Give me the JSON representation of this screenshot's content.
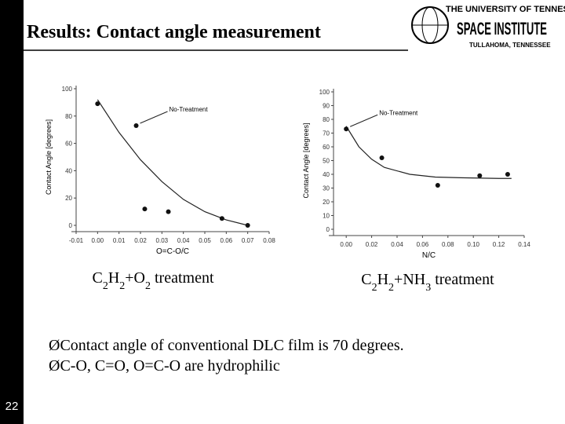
{
  "slide": {
    "title": "Results: Contact angle measurement",
    "logo": [
      "THE UNIVERSITY OF TENNESSEE",
      "SPACE INSTITUTE",
      "TULLAHOMA, TENNESSEE"
    ],
    "captions": [
      "C2H2+O2 treatment",
      "C2H2+NH3 treatment"
    ],
    "bullet": "Ø",
    "bullets": [
      "Contact angle of conventional DLC film is 70 degrees.",
      "C-O, C=O, O=C-O are hydrophilic"
    ],
    "page_number": "22"
  },
  "chart_data": [
    {
      "type": "scatter",
      "xlabel": "O=C-O/C",
      "ylabel": "Contact Angle [degrees]",
      "annotation": "No-Treatment",
      "x": [
        0.0,
        0.018,
        0.022,
        0.033,
        0.058,
        0.07
      ],
      "values": [
        89,
        73,
        12,
        10,
        5,
        0
      ],
      "color": "#111111",
      "curve": {
        "x": [
          0.0,
          0.01,
          0.02,
          0.03,
          0.04,
          0.05,
          0.06,
          0.07
        ],
        "y": [
          92,
          68,
          48,
          32,
          19,
          10,
          4,
          0
        ]
      },
      "xlim": [
        -0.01,
        0.08
      ],
      "xticks": [
        {
          "value": -0.01,
          "label": "-0.01"
        },
        {
          "value": 0.0,
          "label": "0.00"
        },
        {
          "value": 0.01,
          "label": "0.01"
        },
        {
          "value": 0.02,
          "label": "0.02"
        },
        {
          "value": 0.03,
          "label": "0.03"
        },
        {
          "value": 0.04,
          "label": "0.04"
        },
        {
          "value": 0.05,
          "label": "0.05"
        },
        {
          "value": 0.06,
          "label": "0.06"
        },
        {
          "value": 0.07,
          "label": "0.07"
        },
        {
          "value": 0.08,
          "label": "0.08"
        }
      ],
      "ylim": [
        0,
        100
      ],
      "yticks": [
        0,
        20,
        40,
        60,
        80,
        100
      ]
    },
    {
      "type": "scatter",
      "xlabel": "N/C",
      "ylabel": "Contact Angle [degrees]",
      "annotation": "No-Treatment",
      "x": [
        0.0,
        0.028,
        0.072,
        0.105,
        0.127
      ],
      "values": [
        73,
        52,
        32,
        39,
        40
      ],
      "color": "#111111",
      "curve": {
        "x": [
          0.0,
          0.01,
          0.02,
          0.03,
          0.05,
          0.07,
          0.09,
          0.12,
          0.13
        ],
        "y": [
          75,
          60,
          51,
          45,
          40,
          38,
          37.5,
          37,
          37
        ]
      },
      "xlim": [
        -0.01,
        0.14
      ],
      "xticks": [
        {
          "value": 0.0,
          "label": "0.00"
        },
        {
          "value": 0.02,
          "label": "0.02"
        },
        {
          "value": 0.04,
          "label": "0.04"
        },
        {
          "value": 0.06,
          "label": "0.06"
        },
        {
          "value": 0.08,
          "label": "0.08"
        },
        {
          "value": 0.1,
          "label": "0.10"
        },
        {
          "value": 0.12,
          "label": "0.12"
        },
        {
          "value": 0.14,
          "label": "0.14"
        }
      ],
      "ylim": [
        0,
        100
      ],
      "yticks": [
        0,
        10,
        20,
        30,
        40,
        50,
        60,
        70,
        80,
        90,
        100
      ]
    }
  ]
}
